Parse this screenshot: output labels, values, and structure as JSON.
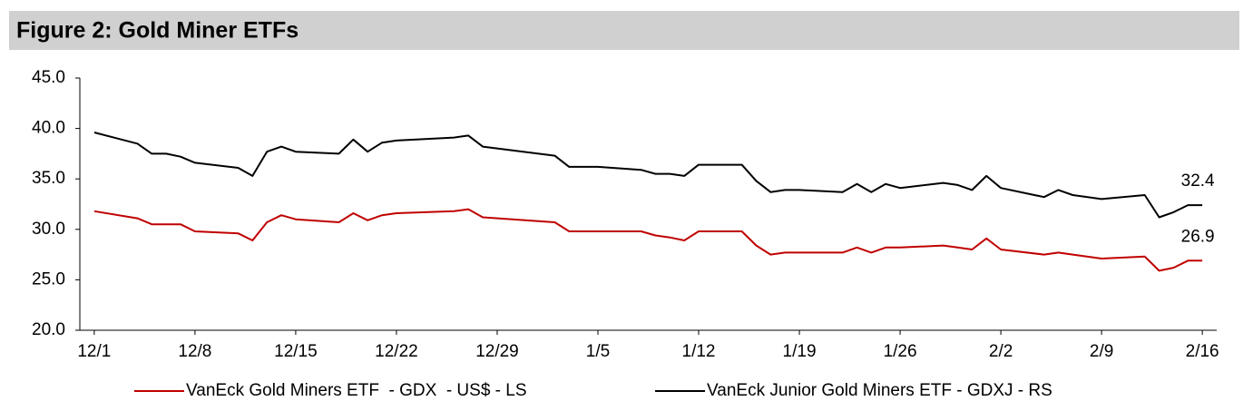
{
  "chart_data": {
    "type": "line",
    "title": "Figure 2: Gold Miner ETFs",
    "x": [
      0,
      3,
      4,
      5,
      6,
      7,
      10,
      11,
      12,
      13,
      14,
      17,
      18,
      19,
      20,
      21,
      25,
      26,
      27,
      32,
      33,
      35,
      38,
      39,
      40,
      41,
      42,
      45,
      46,
      47,
      48,
      49,
      52,
      53,
      54,
      55,
      56,
      59,
      60,
      61,
      62,
      63,
      66,
      67,
      68,
      70,
      73,
      74,
      75,
      76,
      77
    ],
    "xlim": [
      -1,
      78
    ],
    "xticks": [
      {
        "value": 0,
        "label": "12/1"
      },
      {
        "value": 7,
        "label": "12/8"
      },
      {
        "value": 14,
        "label": "12/15"
      },
      {
        "value": 21,
        "label": "12/22"
      },
      {
        "value": 28,
        "label": "12/29"
      },
      {
        "value": 35,
        "label": "1/5"
      },
      {
        "value": 42,
        "label": "1/12"
      },
      {
        "value": 49,
        "label": "1/19"
      },
      {
        "value": 56,
        "label": "1/26"
      },
      {
        "value": 63,
        "label": "2/2"
      },
      {
        "value": 70,
        "label": "2/9"
      },
      {
        "value": 77,
        "label": "2/16"
      }
    ],
    "ylim": [
      20,
      45
    ],
    "yticks": [
      {
        "value": 20,
        "label": "20.0"
      },
      {
        "value": 25,
        "label": "25.0"
      },
      {
        "value": 30,
        "label": "30.0"
      },
      {
        "value": 35,
        "label": "35.0"
      },
      {
        "value": 40,
        "label": "40.0"
      },
      {
        "value": 45,
        "label": "45.0"
      }
    ],
    "grid": false,
    "legend": "bottom",
    "series": [
      {
        "name": "VanEck Gold Miners ETF  - GDX  - US$ - LS",
        "color": "#c00000",
        "label_last": true,
        "values": [
          31.8,
          31.1,
          30.5,
          30.5,
          30.5,
          29.8,
          29.6,
          28.9,
          30.7,
          31.4,
          31.0,
          30.7,
          31.6,
          30.9,
          31.4,
          31.6,
          31.8,
          32.0,
          31.2,
          30.7,
          29.8,
          29.8,
          29.8,
          29.4,
          29.2,
          28.9,
          29.8,
          29.8,
          28.4,
          27.5,
          27.7,
          27.7,
          27.7,
          28.2,
          27.7,
          28.2,
          28.2,
          28.4,
          28.2,
          28.0,
          29.1,
          28.0,
          27.5,
          27.7,
          27.5,
          27.1,
          27.3,
          25.9,
          26.2,
          26.9,
          26.9
        ]
      },
      {
        "name": "VanEck Junior Gold Miners ETF - GDXJ - RS",
        "color": "#000000",
        "label_last": true,
        "values": [
          39.6,
          38.5,
          37.5,
          37.5,
          37.2,
          36.6,
          36.1,
          35.3,
          37.7,
          38.2,
          37.7,
          37.5,
          38.9,
          37.7,
          38.6,
          38.8,
          39.1,
          39.3,
          38.2,
          37.3,
          36.2,
          36.2,
          35.9,
          35.5,
          35.5,
          35.3,
          36.4,
          36.4,
          34.8,
          33.7,
          33.9,
          33.9,
          33.7,
          34.5,
          33.7,
          34.5,
          34.1,
          34.6,
          34.4,
          33.9,
          35.3,
          34.1,
          33.2,
          33.9,
          33.4,
          33.0,
          33.4,
          31.2,
          31.7,
          32.4,
          32.4
        ]
      }
    ]
  }
}
